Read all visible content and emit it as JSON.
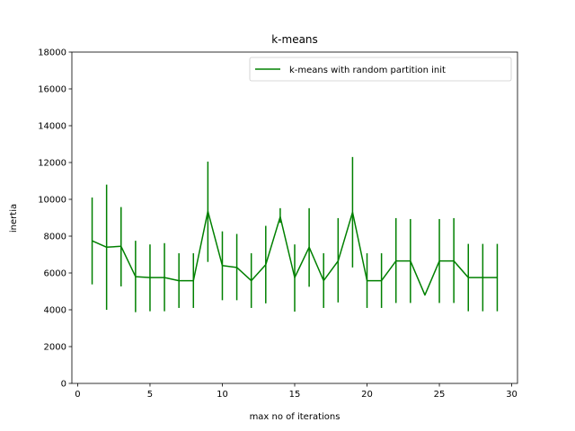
{
  "chart_data": {
    "type": "line",
    "title": "k-means",
    "xlabel": "max no of iterations",
    "ylabel": "inertia",
    "xlim": [
      -0.4,
      30.4
    ],
    "ylim": [
      0,
      18000
    ],
    "xticks": [
      0,
      5,
      10,
      15,
      20,
      25,
      30
    ],
    "yticks": [
      0,
      2000,
      4000,
      6000,
      8000,
      10000,
      12000,
      14000,
      16000,
      18000
    ],
    "grid": false,
    "legend_position": "top-right",
    "series": [
      {
        "name": "k-means with random partition init",
        "color": "#008000",
        "x": [
          1,
          2,
          3,
          4,
          5,
          6,
          7,
          8,
          9,
          10,
          11,
          12,
          13,
          14,
          15,
          16,
          17,
          18,
          19,
          20,
          21,
          22,
          23,
          24,
          25,
          26,
          27,
          28,
          29
        ],
        "y": [
          7750,
          7400,
          7450,
          5800,
          5750,
          5750,
          5580,
          5580,
          9350,
          6400,
          6300,
          5580,
          6450,
          9050,
          5750,
          7400,
          5580,
          6650,
          9300,
          5580,
          5580,
          6650,
          6650,
          4800,
          6650,
          6650,
          5750,
          5750,
          5750
        ],
        "err_low": [
          5380,
          4000,
          5270,
          3870,
          3920,
          3920,
          4100,
          4100,
          6600,
          4520,
          4520,
          4100,
          4350,
          8720,
          3900,
          5250,
          4100,
          4400,
          6300,
          4100,
          4100,
          4370,
          4370,
          4800,
          4370,
          4370,
          3920,
          3920,
          3920
        ],
        "err_high": [
          10100,
          10800,
          9580,
          7750,
          7550,
          7620,
          7070,
          7070,
          12050,
          8260,
          8120,
          7070,
          8560,
          9520,
          7550,
          9520,
          7070,
          8980,
          12300,
          7070,
          7070,
          8980,
          8930,
          4800,
          8930,
          8980,
          7580,
          7580,
          7580
        ]
      }
    ]
  }
}
